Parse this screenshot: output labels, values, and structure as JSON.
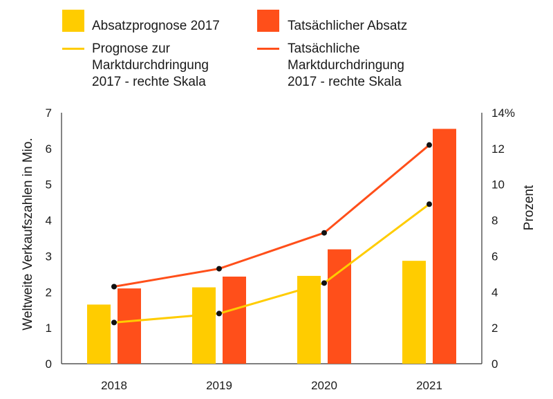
{
  "chart_data": {
    "type": "bar",
    "categories": [
      "2018",
      "2019",
      "2020",
      "2021"
    ],
    "bar_series": [
      {
        "name": "Absatzprognose 2017",
        "color": "#FFCC00",
        "values": [
          1.65,
          2.13,
          2.45,
          2.87
        ]
      },
      {
        "name": "Tatsächlicher Absatz",
        "color": "#FF4F1A",
        "values": [
          2.1,
          2.43,
          3.19,
          6.55
        ]
      }
    ],
    "line_series": [
      {
        "name_lines": [
          "Prognose zur",
          "Marktdurchdringung",
          "2017 - rechte Skala"
        ],
        "color": "#FFCC00",
        "values": [
          2.3,
          2.8,
          4.5,
          8.9
        ]
      },
      {
        "name_lines": [
          "Tatsächliche",
          "Marktdurchdringung",
          "2017 - rechte Skala"
        ],
        "color": "#FF4F1A",
        "values": [
          4.3,
          5.3,
          7.3,
          12.2
        ]
      }
    ],
    "left_axis": {
      "label": "Weltweite Verkaufszahlen in Mio.",
      "ylim": [
        0,
        7
      ],
      "ticks": [
        "0",
        "1",
        "2",
        "3",
        "4",
        "5",
        "6",
        "7"
      ]
    },
    "right_axis": {
      "label": "Prozent",
      "ylim": [
        0,
        14
      ],
      "ticks": [
        "0",
        "2",
        "4",
        "6",
        "8",
        "10",
        "12",
        "14%"
      ]
    },
    "grid": false,
    "legend_position": "top"
  }
}
